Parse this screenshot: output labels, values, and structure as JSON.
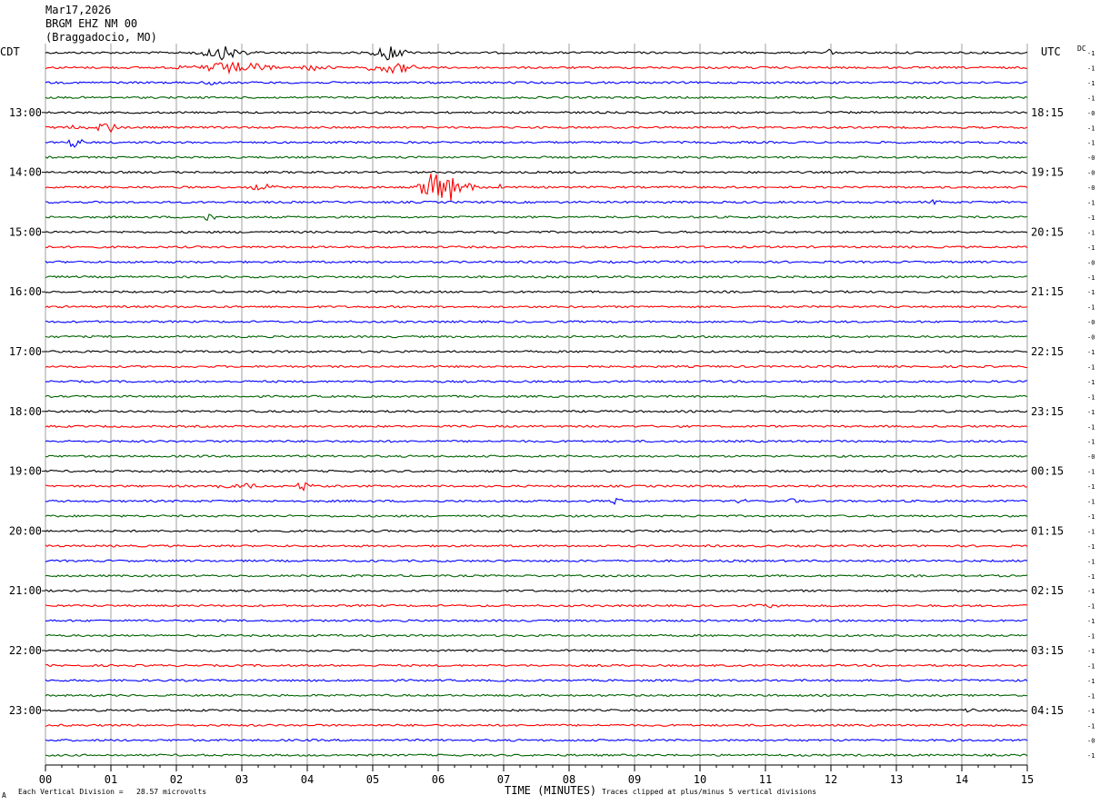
{
  "header": {
    "date": "Mar17,2026",
    "station": "BRGM EHZ NM 00",
    "location": "(Braggadocio, MO)"
  },
  "left_tz": "CDT",
  "right_tz": "UTC",
  "dc_label": "DC",
  "footer": {
    "scale_note": "Each Vertical Division =   28.57 microvolts",
    "clip_note": "Traces clipped at plus/minus 5 vertical divisions",
    "corner_mark": "A"
  },
  "chart_data": {
    "type": "line",
    "title": "",
    "xlabel": "TIME (MINUTES)",
    "ylabel": "",
    "xlim": [
      0,
      15
    ],
    "x_ticks": [
      "00",
      "01",
      "02",
      "03",
      "04",
      "05",
      "06",
      "07",
      "08",
      "09",
      "10",
      "11",
      "12",
      "13",
      "14",
      "15"
    ],
    "left_hour_labels": [
      "13:00",
      "14:00",
      "15:00",
      "16:00",
      "17:00",
      "18:00",
      "19:00",
      "20:00",
      "21:00",
      "22:00",
      "23:00"
    ],
    "right_hour_labels": [
      "18:15",
      "19:15",
      "20:15",
      "21:15",
      "22:15",
      "23:15",
      "00:15",
      "01:15",
      "02:15",
      "03:15",
      "04:15"
    ],
    "first_labeled_row": 4,
    "rows_per_hour": 4,
    "row_count": 48,
    "row_colors": [
      "#000000",
      "#ff0000",
      "#0000ff",
      "#006400"
    ],
    "dc_offsets": [
      "-1",
      "-1",
      "-1",
      "-1",
      "-0",
      "-1",
      "-1",
      "-0",
      "-0",
      "-0",
      "-1",
      "-1",
      "-1",
      "-1",
      "-0",
      "-1",
      "-1",
      "-1",
      "-0",
      "-0",
      "-1",
      "-1",
      "-1",
      "-1",
      "-1",
      "-1",
      "-1",
      "-0",
      "-1",
      "-1",
      "-1",
      "-1",
      "-1",
      "-1",
      "-1",
      "-1",
      "-1",
      "-1",
      "-1",
      "-1",
      "-1",
      "-1",
      "-1",
      "-1",
      "-1",
      "-1",
      "-0",
      "-1"
    ],
    "events": [
      {
        "row": 0,
        "minute": 2.7,
        "span": 0.6,
        "amp": 1.8
      },
      {
        "row": 0,
        "minute": 5.25,
        "span": 0.35,
        "amp": 2.2
      },
      {
        "row": 0,
        "minute": 12.0,
        "span": 0.15,
        "amp": 1.2
      },
      {
        "row": 1,
        "minute": 2.8,
        "span": 0.9,
        "amp": 1.6
      },
      {
        "row": 1,
        "minute": 5.3,
        "span": 0.6,
        "amp": 1.5
      },
      {
        "row": 1,
        "minute": 4.1,
        "span": 0.4,
        "amp": 0.8
      },
      {
        "row": 2,
        "minute": 2.5,
        "span": 0.2,
        "amp": 1.0
      },
      {
        "row": 5,
        "minute": 0.95,
        "span": 0.3,
        "amp": 1.5
      },
      {
        "row": 5,
        "minute": 0.45,
        "span": 0.3,
        "amp": 0.9
      },
      {
        "row": 6,
        "minute": 0.45,
        "span": 0.15,
        "amp": 1.8
      },
      {
        "row": 9,
        "minute": 6.1,
        "span": 0.5,
        "amp": 6.0
      },
      {
        "row": 9,
        "minute": 3.3,
        "span": 0.3,
        "amp": 0.9
      },
      {
        "row": 9,
        "minute": 6.9,
        "span": 0.15,
        "amp": 1.0
      },
      {
        "row": 10,
        "minute": 13.6,
        "span": 0.1,
        "amp": 1.0
      },
      {
        "row": 11,
        "minute": 2.5,
        "span": 0.2,
        "amp": 1.0
      },
      {
        "row": 29,
        "minute": 3.0,
        "span": 0.5,
        "amp": 1.0
      },
      {
        "row": 29,
        "minute": 3.95,
        "span": 0.2,
        "amp": 1.8
      },
      {
        "row": 30,
        "minute": 8.7,
        "span": 0.15,
        "amp": 1.0
      },
      {
        "row": 30,
        "minute": 10.6,
        "span": 0.15,
        "amp": 1.0
      },
      {
        "row": 30,
        "minute": 11.4,
        "span": 0.2,
        "amp": 0.8
      },
      {
        "row": 37,
        "minute": 11.0,
        "span": 0.4,
        "amp": 0.7
      },
      {
        "row": 44,
        "minute": 14.1,
        "span": 0.2,
        "amp": 0.8
      }
    ]
  }
}
